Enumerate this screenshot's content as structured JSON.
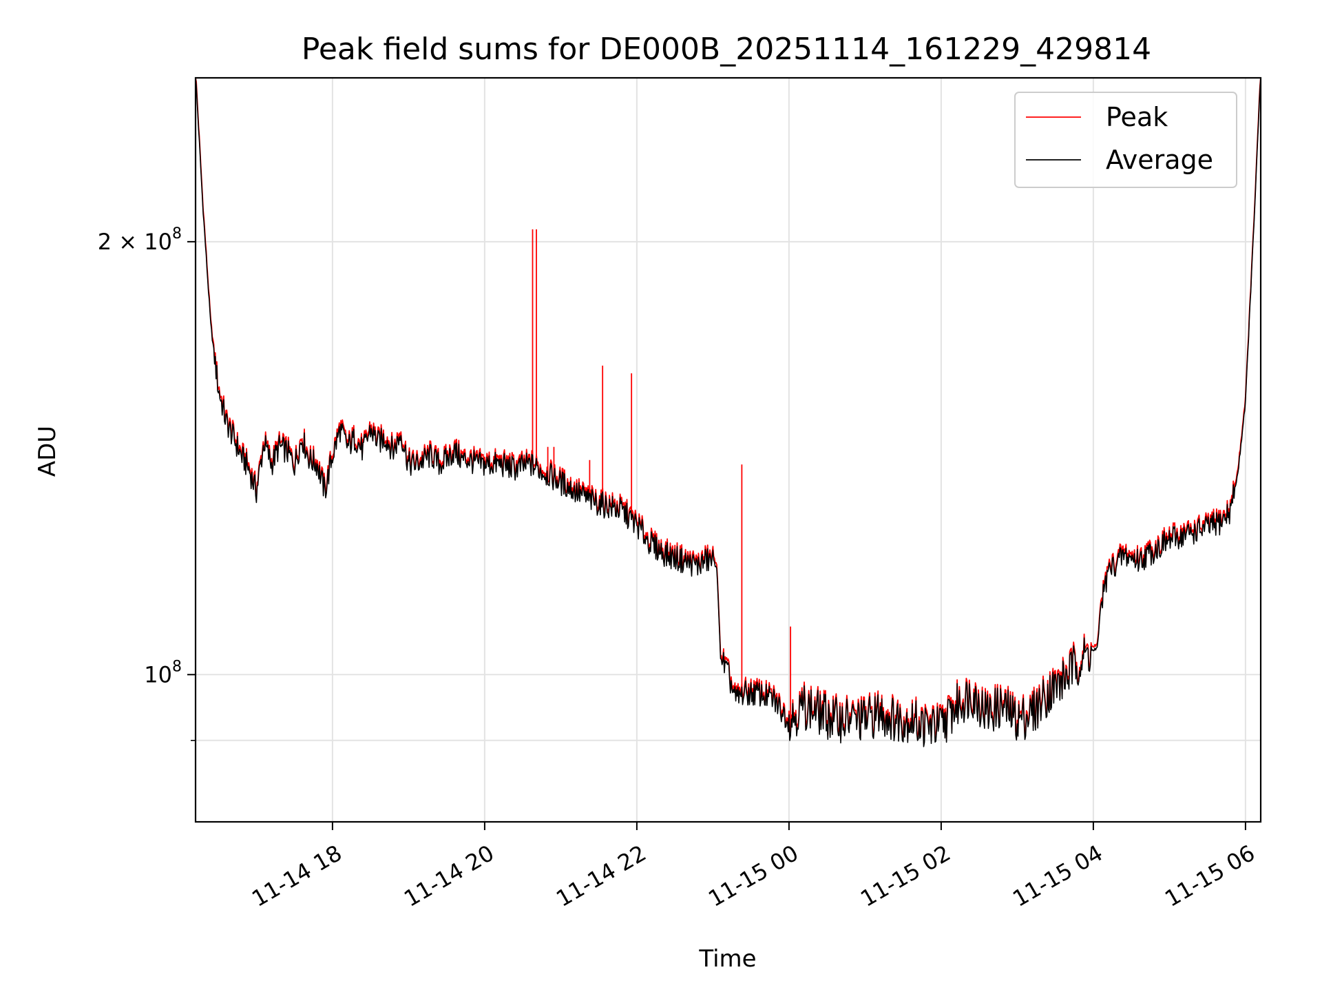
{
  "chart_data": {
    "type": "line",
    "title": "Peak field sums for DE000B_20251114_161229_429814",
    "xlabel": "Time",
    "ylabel": "ADU",
    "yscale": "log",
    "ylim": [
      79000000,
      260000000
    ],
    "xlim_hours": [
      16.2,
      30.2
    ],
    "grid": true,
    "legend_position": "top-right",
    "x_ticks": [
      {
        "hour": 18,
        "label": "11-14 18"
      },
      {
        "hour": 20,
        "label": "11-14 20"
      },
      {
        "hour": 22,
        "label": "11-14 22"
      },
      {
        "hour": 24,
        "label": "11-15 00"
      },
      {
        "hour": 26,
        "label": "11-15 02"
      },
      {
        "hour": 28,
        "label": "11-15 04"
      },
      {
        "hour": 30,
        "label": "11-15 06"
      }
    ],
    "y_major_ticks": [
      {
        "value": 200000000,
        "base": "2 × 10",
        "exp": "8"
      },
      {
        "value": 100000000,
        "base": "10",
        "exp": "8"
      }
    ],
    "y_minor_ticks": [
      90000000
    ],
    "x_hours": [
      16.2,
      16.3,
      16.4,
      16.5,
      16.6,
      16.7,
      16.8,
      16.9,
      17.0,
      17.1,
      17.2,
      17.3,
      17.4,
      17.5,
      17.6,
      17.7,
      17.8,
      17.9,
      18.0,
      18.1,
      18.2,
      18.3,
      18.4,
      18.5,
      18.6,
      18.7,
      18.8,
      18.9,
      19.0,
      19.1,
      19.2,
      19.3,
      19.4,
      19.5,
      19.6,
      19.7,
      19.8,
      19.9,
      20.0,
      20.2,
      20.4,
      20.6,
      20.8,
      21.0,
      21.2,
      21.4,
      21.6,
      21.8,
      22.0,
      22.2,
      22.4,
      22.6,
      22.8,
      22.9,
      23.0,
      23.05,
      23.1,
      23.2,
      23.3,
      23.4,
      23.6,
      23.8,
      24.0,
      24.2,
      24.4,
      24.6,
      24.8,
      25.0,
      25.2,
      25.4,
      25.6,
      25.8,
      26.0,
      26.2,
      26.4,
      26.6,
      26.8,
      27.0,
      27.2,
      27.4,
      27.6,
      27.8,
      28.0,
      28.05,
      28.1,
      28.2,
      28.4,
      28.6,
      28.8,
      29.0,
      29.2,
      29.4,
      29.6,
      29.7,
      29.8,
      29.9,
      30.0,
      30.1,
      30.2
    ],
    "series": [
      {
        "name": "Peak",
        "color": "#ff0000",
        "values": [
          262000000,
          210000000,
          175000000,
          158000000,
          150000000,
          146000000,
          142000000,
          139000000,
          134000000,
          145000000,
          140000000,
          144000000,
          143000000,
          140000000,
          146000000,
          141000000,
          140000000,
          134000000,
          142000000,
          148000000,
          144000000,
          146000000,
          143000000,
          148000000,
          145000000,
          146000000,
          143000000,
          147000000,
          140000000,
          140000000,
          141000000,
          142000000,
          140000000,
          141000000,
          143000000,
          141000000,
          141000000,
          140000000,
          140000000,
          140000000,
          139000000,
          140000000,
          138000000,
          136000000,
          134000000,
          132000000,
          131000000,
          130000000,
          127000000,
          123000000,
          121000000,
          120000000,
          119000000,
          120000000,
          120000000,
          119000000,
          103000000,
          100000000,
          96000000,
          97000000,
          97000000,
          96000000,
          93000000,
          95000000,
          94000000,
          93000000,
          93000000,
          93000000,
          94000000,
          93000000,
          93000000,
          92000000,
          92000000,
          95000000,
          97000000,
          94000000,
          95000000,
          93000000,
          94000000,
          97000000,
          99000000,
          102000000,
          104000000,
          104000000,
          112000000,
          118000000,
          121000000,
          120000000,
          122000000,
          124000000,
          125000000,
          126000000,
          127000000,
          128000000,
          130000000,
          138000000,
          155000000,
          200000000,
          262000000
        ]
      },
      {
        "name": "Average",
        "color": "#000000",
        "values": [
          262000000,
          210000000,
          175000000,
          158000000,
          150000000,
          146000000,
          142000000,
          139000000,
          134000000,
          145000000,
          140000000,
          144000000,
          143000000,
          140000000,
          146000000,
          141000000,
          140000000,
          134000000,
          142000000,
          148000000,
          144000000,
          146000000,
          143000000,
          148000000,
          145000000,
          146000000,
          143000000,
          147000000,
          140000000,
          140000000,
          141000000,
          142000000,
          140000000,
          141000000,
          143000000,
          141000000,
          141000000,
          140000000,
          140000000,
          140000000,
          139000000,
          140000000,
          138000000,
          136000000,
          134000000,
          132000000,
          131000000,
          130000000,
          127000000,
          123000000,
          121000000,
          120000000,
          119000000,
          120000000,
          120000000,
          119000000,
          103000000,
          100000000,
          96000000,
          97000000,
          97000000,
          96000000,
          93000000,
          95000000,
          94000000,
          93000000,
          93000000,
          93000000,
          94000000,
          93000000,
          93000000,
          92000000,
          92000000,
          95000000,
          97000000,
          94000000,
          95000000,
          93000000,
          94000000,
          97000000,
          99000000,
          102000000,
          104000000,
          104000000,
          112000000,
          118000000,
          121000000,
          120000000,
          122000000,
          124000000,
          125000000,
          126000000,
          127000000,
          128000000,
          130000000,
          138000000,
          155000000,
          200000000,
          262000000
        ]
      }
    ],
    "peak_spikes": [
      {
        "hour": 20.63,
        "value": 204000000
      },
      {
        "hour": 20.68,
        "value": 204000000
      },
      {
        "hour": 20.83,
        "value": 144000000
      },
      {
        "hour": 20.91,
        "value": 144000000
      },
      {
        "hour": 21.38,
        "value": 141000000
      },
      {
        "hour": 21.55,
        "value": 164000000
      },
      {
        "hour": 21.93,
        "value": 162000000
      },
      {
        "hour": 23.38,
        "value": 140000000
      },
      {
        "hour": 24.02,
        "value": 108000000
      }
    ],
    "legend": [
      {
        "label": "Peak",
        "color": "#ff0000"
      },
      {
        "label": "Average",
        "color": "#000000"
      }
    ]
  }
}
